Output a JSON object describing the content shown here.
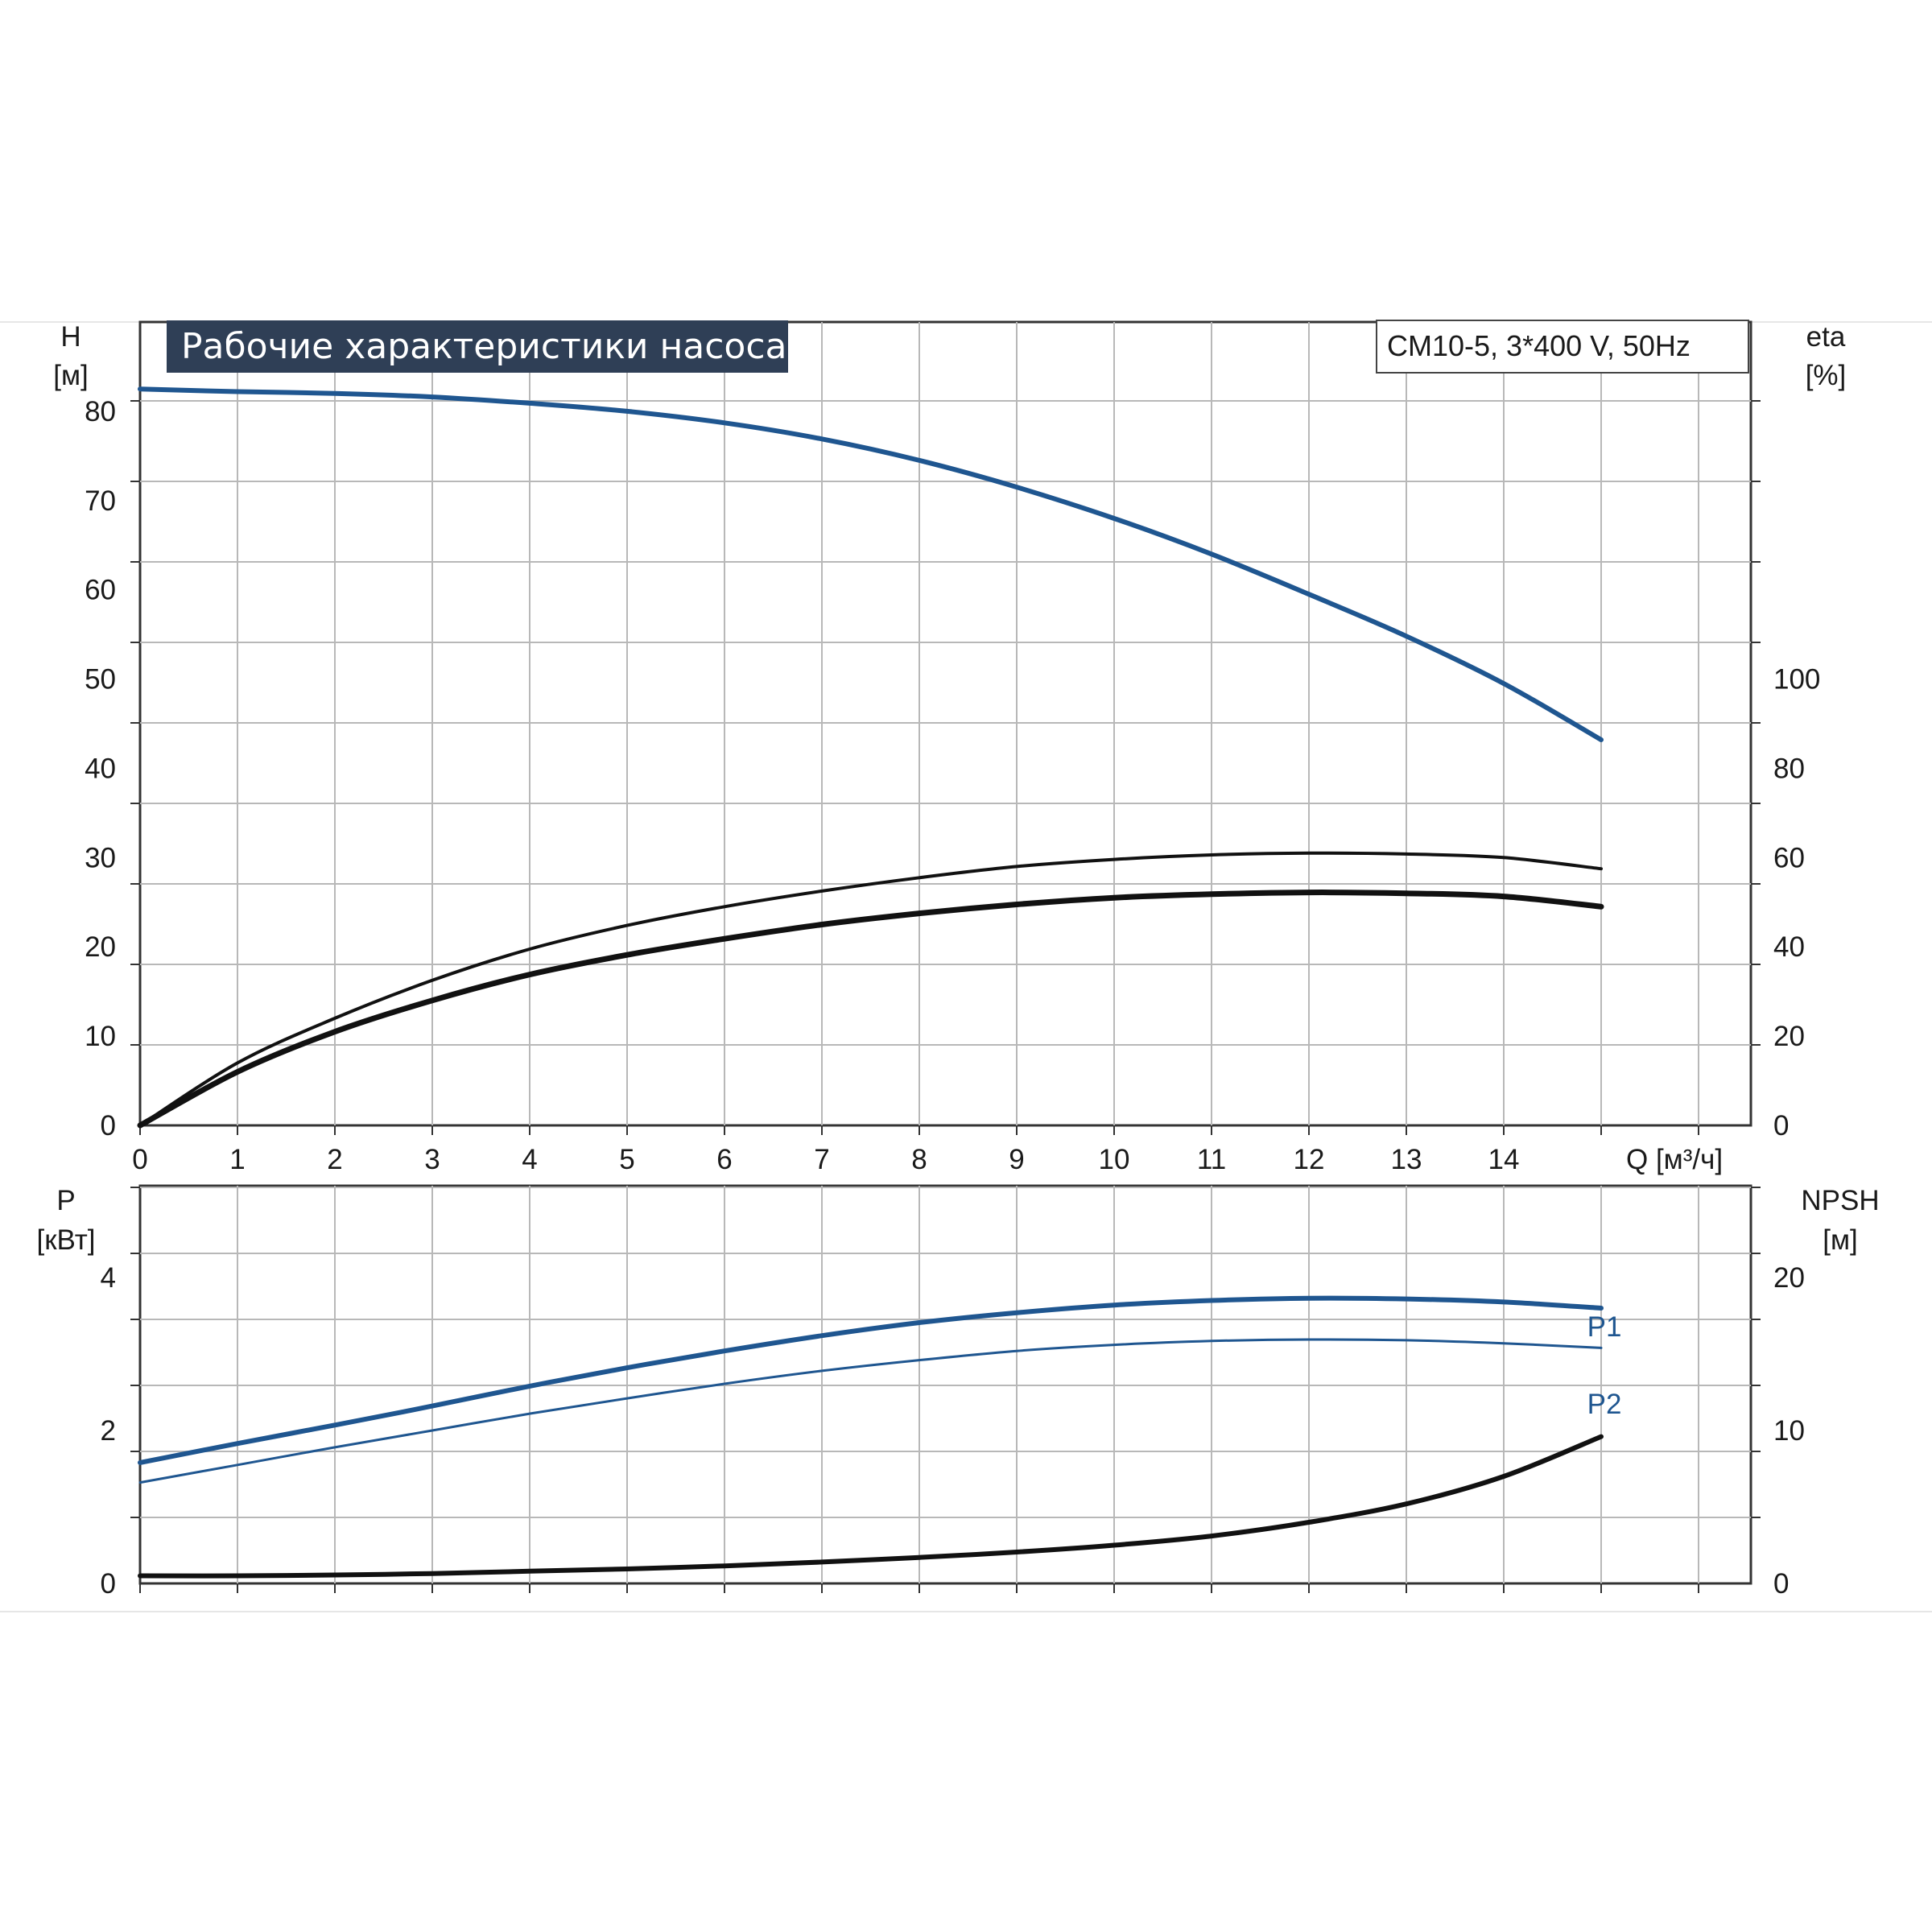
{
  "colors": {
    "blue": "#1f5690",
    "black": "#111111",
    "grid": "#b8b8b8",
    "title_bg": "#2f3f56"
  },
  "title": "Рабочие характеристики насоса",
  "model": "CM10-5, 3*400 V, 50Hz",
  "chart_data": [
    {
      "type": "line",
      "x_label": "Q [м³/ч]",
      "x_ticks": [
        "0",
        "1",
        "2",
        "3",
        "4",
        "5",
        "6",
        "7",
        "8",
        "9",
        "10",
        "11",
        "12",
        "13",
        "14"
      ],
      "xlim": [
        0,
        16.5
      ],
      "y_label_left": [
        "H",
        "[м]"
      ],
      "y_label_right": [
        "eta",
        "[%]"
      ],
      "y_ticks_left": [
        "0",
        "10",
        "20",
        "30",
        "40",
        "50",
        "60",
        "70",
        "80"
      ],
      "ylim_left": [
        0,
        90
      ],
      "y_ticks_right": [
        "0",
        "20",
        "40",
        "60",
        "80",
        "100"
      ],
      "ylim_right": [
        0,
        180
      ],
      "grid": true,
      "series": [
        {
          "axis": "left",
          "color": "blue",
          "width": 6,
          "points": [
            [
              0,
              82.5
            ],
            [
              1,
              82.2
            ],
            [
              2,
              82.0
            ],
            [
              3,
              81.6
            ],
            [
              4,
              80.9
            ],
            [
              5,
              80.0
            ],
            [
              6,
              78.7
            ],
            [
              7,
              76.9
            ],
            [
              8,
              74.5
            ],
            [
              9,
              71.5
            ],
            [
              10,
              68.0
            ],
            [
              11,
              64.0
            ],
            [
              12,
              59.5
            ],
            [
              13,
              54.8
            ],
            [
              14,
              49.5
            ],
            [
              15,
              43.2
            ]
          ]
        },
        {
          "axis": "right",
          "color": "black",
          "width": 4,
          "points": [
            [
              0,
              0
            ],
            [
              1,
              14
            ],
            [
              2,
              24
            ],
            [
              3,
              32.5
            ],
            [
              4,
              39.5
            ],
            [
              5,
              44.8
            ],
            [
              6,
              49
            ],
            [
              7,
              52.5
            ],
            [
              8,
              55.5
            ],
            [
              9,
              58
            ],
            [
              10,
              59.6
            ],
            [
              11,
              60.6
            ],
            [
              12,
              61
            ],
            [
              13,
              60.8
            ],
            [
              14,
              60
            ],
            [
              15,
              57.5
            ]
          ]
        },
        {
          "axis": "right",
          "color": "black",
          "width": 7,
          "points": [
            [
              0,
              0
            ],
            [
              1,
              12
            ],
            [
              2,
              21
            ],
            [
              3,
              28
            ],
            [
              4,
              33.8
            ],
            [
              5,
              38.2
            ],
            [
              6,
              41.8
            ],
            [
              7,
              45
            ],
            [
              8,
              47.5
            ],
            [
              9,
              49.5
            ],
            [
              10,
              51
            ],
            [
              11,
              51.8
            ],
            [
              12,
              52.2
            ],
            [
              13,
              52
            ],
            [
              14,
              51.3
            ],
            [
              15,
              49
            ]
          ]
        }
      ]
    },
    {
      "type": "line",
      "x_ticks": [
        "0",
        "1",
        "2",
        "3",
        "4",
        "5",
        "6",
        "7",
        "8",
        "9",
        "10",
        "11",
        "12",
        "13",
        "14"
      ],
      "xlim": [
        0,
        16.5
      ],
      "y_label_left": [
        "P",
        "[кВт]"
      ],
      "y_label_right": [
        "NPSH",
        "[м]"
      ],
      "y_ticks_left": [
        "0",
        "2",
        "4"
      ],
      "ylim_left": [
        0,
        5.2
      ],
      "y_ticks_right": [
        "0",
        "10",
        "20"
      ],
      "ylim_right": [
        0,
        26
      ],
      "grid": true,
      "series": [
        {
          "name": "P1",
          "axis": "left",
          "color": "blue",
          "width": 6,
          "points": [
            [
              0,
              1.58
            ],
            [
              1,
              1.83
            ],
            [
              2,
              2.07
            ],
            [
              3,
              2.32
            ],
            [
              4,
              2.58
            ],
            [
              5,
              2.82
            ],
            [
              6,
              3.04
            ],
            [
              7,
              3.24
            ],
            [
              8,
              3.41
            ],
            [
              9,
              3.54
            ],
            [
              10,
              3.64
            ],
            [
              11,
              3.7
            ],
            [
              12,
              3.73
            ],
            [
              13,
              3.72
            ],
            [
              14,
              3.68
            ],
            [
              15,
              3.6
            ]
          ]
        },
        {
          "name": "P2",
          "axis": "left",
          "color": "blue",
          "width": 3,
          "points": [
            [
              0,
              1.32
            ],
            [
              1,
              1.55
            ],
            [
              2,
              1.78
            ],
            [
              3,
              2.0
            ],
            [
              4,
              2.22
            ],
            [
              5,
              2.42
            ],
            [
              6,
              2.61
            ],
            [
              7,
              2.78
            ],
            [
              8,
              2.92
            ],
            [
              9,
              3.04
            ],
            [
              10,
              3.12
            ],
            [
              11,
              3.17
            ],
            [
              12,
              3.19
            ],
            [
              13,
              3.18
            ],
            [
              14,
              3.14
            ],
            [
              15,
              3.08
            ]
          ]
        },
        {
          "axis": "right",
          "color": "black",
          "width": 6,
          "points": [
            [
              0,
              0.5
            ],
            [
              1,
              0.5
            ],
            [
              2,
              0.55
            ],
            [
              3,
              0.65
            ],
            [
              4,
              0.8
            ],
            [
              5,
              0.95
            ],
            [
              6,
              1.15
            ],
            [
              7,
              1.4
            ],
            [
              8,
              1.7
            ],
            [
              9,
              2.05
            ],
            [
              10,
              2.5
            ],
            [
              11,
              3.1
            ],
            [
              12,
              4.0
            ],
            [
              13,
              5.2
            ],
            [
              14,
              7.0
            ],
            [
              15,
              9.6
            ]
          ]
        }
      ]
    }
  ]
}
